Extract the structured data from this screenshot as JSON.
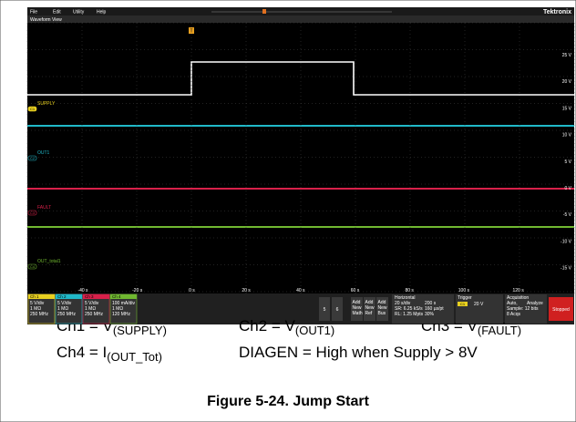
{
  "menu": [
    "File",
    "Edit",
    "Utility",
    "Help"
  ],
  "brand": "Tektronix",
  "view_title": "Waveform View",
  "trigger_marker": "T",
  "y_labels": [
    "25 V",
    "20 V",
    "15 V",
    "10 V",
    "5 V",
    "0 V",
    "-5 V",
    "-10 V",
    "-15 V"
  ],
  "x_labels": [
    "-40 s",
    "-20 s",
    "0 s",
    "20 s",
    "40 s",
    "60 s",
    "80 s",
    "100 s",
    "120 s"
  ],
  "channel_labels": [
    {
      "marker": "C1",
      "name": "SUPPLY"
    },
    {
      "marker": "C2",
      "name": "OUT1"
    },
    {
      "marker": "C3",
      "name": "FAULT"
    },
    {
      "marker": "C4",
      "name": "OUT_total1"
    }
  ],
  "channels": [
    {
      "name": "Ch 1",
      "lines": [
        "5 V/div",
        "1 MΩ",
        "250 MHz"
      ]
    },
    {
      "name": "Ch 2",
      "lines": [
        "5 V/div",
        "1 MΩ",
        "250 MHz"
      ]
    },
    {
      "name": "Ch 3",
      "lines": [
        "5 V/div",
        "1 MΩ",
        "250 MHz"
      ]
    },
    {
      "name": "Ch 4",
      "lines": [
        "100 mA/div",
        "1 MΩ",
        "120 MHz"
      ]
    }
  ],
  "buttons": [
    "5",
    "6"
  ],
  "add_buttons": [
    [
      "Add",
      "New",
      "Math"
    ],
    [
      "Add",
      "New",
      "Ref"
    ],
    [
      "Add",
      "New",
      "Bus"
    ]
  ],
  "horizontal": {
    "title": "Horizontal",
    "lines": [
      "20 s/div",
      "200 s",
      "SR: 6.25 kS/s",
      "160 µs/pt",
      "RL: 1.25 Mpts",
      "30%"
    ]
  },
  "trigger": {
    "title": "Trigger",
    "source": "C1",
    "level": "20 V"
  },
  "acquisition": {
    "title": "Acquisition",
    "lines": [
      "Auto,",
      "Analyze",
      "Sample: 12 bits",
      "8 Acqs"
    ]
  },
  "status": "Stopped",
  "captions": [
    {
      "text": "Ch1 = V",
      "sub": "(SUPPLY)"
    },
    {
      "text": "Ch2 = V",
      "sub": "(OUT1)"
    },
    {
      "text": "Ch3 = V",
      "sub": "(FAULT)"
    },
    {
      "text": "Ch4 = I",
      "sub": "(OUT_Tot)"
    },
    {
      "text": "DIAGEN = High when Supply > 8V"
    }
  ],
  "figure_caption": "Figure 5-24. Jump Start"
}
